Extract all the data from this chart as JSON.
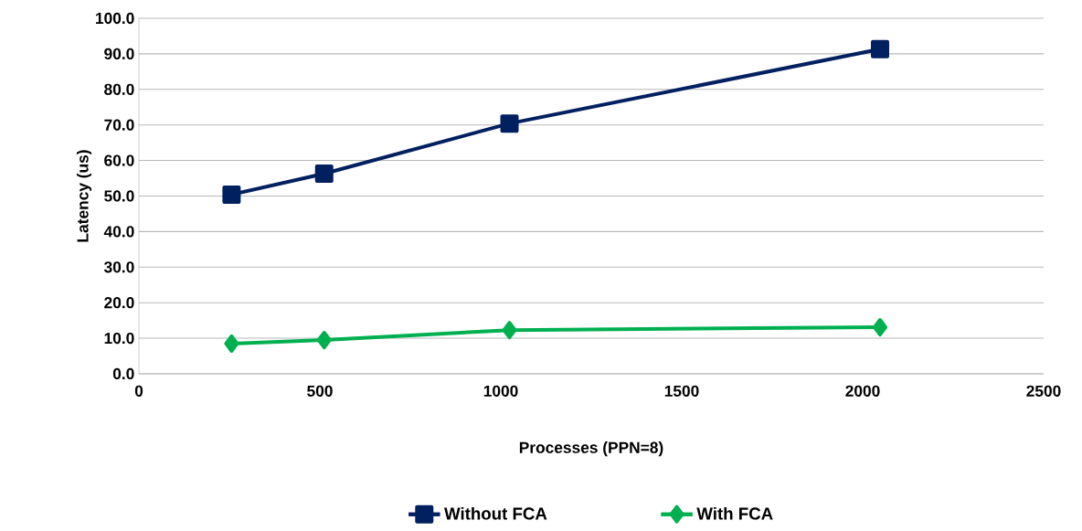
{
  "chart_data": {
    "type": "line",
    "xlabel": "Processes (PPN=8)",
    "ylabel": "Latency (us)",
    "x": [
      256,
      512,
      1024,
      2048
    ],
    "series": [
      {
        "name": "Without FCA",
        "color": "#002060",
        "marker": "square",
        "values": [
          50.4,
          56.3,
          70.4,
          91.3
        ]
      },
      {
        "name": "With FCA",
        "color": "#00b050",
        "marker": "diamond",
        "values": [
          8.5,
          9.5,
          12.3,
          13.1
        ]
      }
    ],
    "xlim": [
      0,
      2500
    ],
    "xticks": [
      0,
      500,
      1000,
      1500,
      2000,
      2500
    ],
    "ylim": [
      0,
      100
    ],
    "yticks": [
      {
        "value": 0,
        "label": "0.0"
      },
      {
        "value": 10,
        "label": "10.0"
      },
      {
        "value": 20,
        "label": "20.0"
      },
      {
        "value": 30,
        "label": "30.0"
      },
      {
        "value": 40,
        "label": "40.0"
      },
      {
        "value": 50,
        "label": "50.0"
      },
      {
        "value": 60,
        "label": "60.0"
      },
      {
        "value": 70,
        "label": "70.0"
      },
      {
        "value": 80,
        "label": "80.0"
      },
      {
        "value": 90,
        "label": "90.0"
      },
      {
        "value": 100,
        "label": "100.0"
      }
    ],
    "grid": "y",
    "legend": "bottom",
    "line_style": "solid"
  }
}
